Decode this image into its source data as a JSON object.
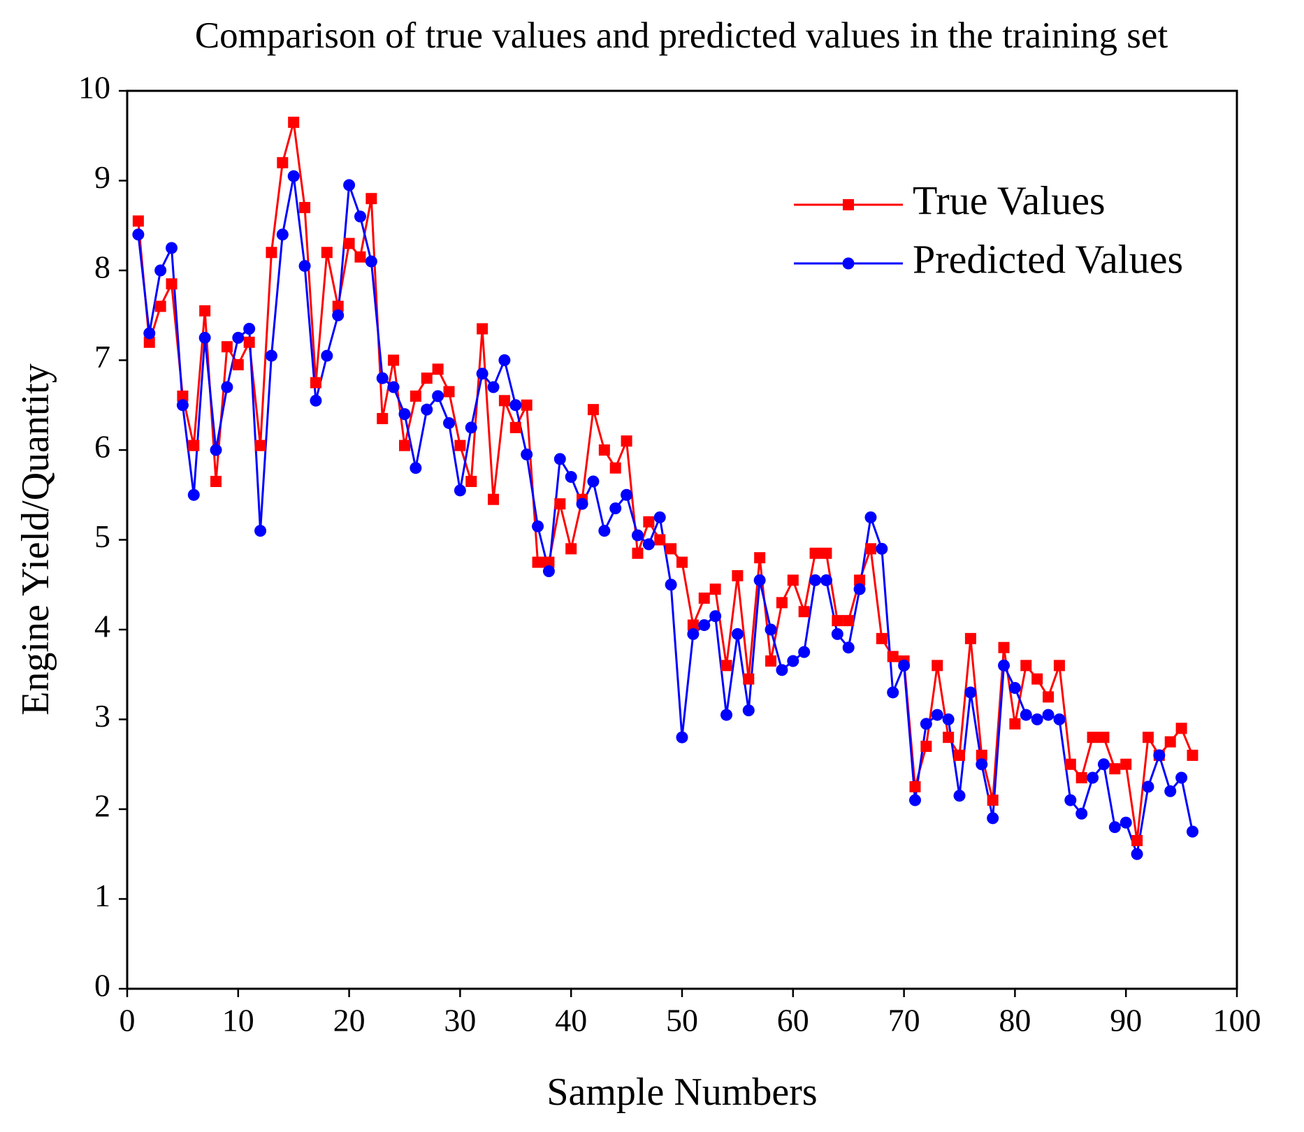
{
  "chart_data": {
    "type": "line",
    "title": "Comparison of true values and predicted values in the training set",
    "xlabel": "Sample Numbers",
    "ylabel": "Engine Yield/Quantity",
    "x": [
      1,
      2,
      3,
      4,
      5,
      6,
      7,
      8,
      9,
      10,
      11,
      12,
      13,
      14,
      15,
      16,
      17,
      18,
      19,
      20,
      21,
      22,
      23,
      24,
      25,
      26,
      27,
      28,
      29,
      30,
      31,
      32,
      33,
      34,
      35,
      36,
      37,
      38,
      39,
      40,
      41,
      42,
      43,
      44,
      45,
      46,
      47,
      48,
      49,
      50,
      51,
      52,
      53,
      54,
      55,
      56,
      57,
      58,
      59,
      60,
      61,
      62,
      63,
      64,
      65,
      66,
      67,
      68,
      69,
      70,
      71,
      72,
      73,
      74,
      75,
      76,
      77,
      78,
      79,
      80,
      81,
      82,
      83,
      84,
      85,
      86,
      87,
      88,
      89,
      90,
      91,
      92,
      93,
      94,
      95,
      96
    ],
    "series": [
      {
        "name": "True Values",
        "color": "#ff0000",
        "marker": "square",
        "values": [
          8.55,
          7.2,
          7.6,
          7.85,
          6.6,
          6.05,
          7.55,
          5.65,
          7.15,
          6.95,
          7.2,
          6.05,
          8.2,
          9.2,
          9.65,
          8.7,
          6.75,
          8.2,
          7.6,
          8.3,
          8.15,
          8.8,
          6.35,
          7.0,
          6.05,
          6.6,
          6.8,
          6.9,
          6.65,
          6.05,
          5.65,
          7.35,
          5.45,
          6.55,
          6.25,
          6.5,
          4.75,
          4.75,
          5.4,
          4.9,
          5.45,
          6.45,
          6.0,
          5.8,
          6.1,
          4.85,
          5.2,
          5.0,
          4.9,
          4.75,
          4.05,
          4.35,
          4.45,
          3.6,
          4.6,
          3.45,
          4.8,
          3.65,
          4.3,
          4.55,
          4.2,
          4.85,
          4.85,
          4.1,
          4.1,
          4.55,
          4.9,
          3.9,
          3.7,
          3.65,
          2.25,
          2.7,
          3.6,
          2.8,
          2.6,
          3.9,
          2.6,
          2.1,
          3.8,
          2.95,
          3.6,
          3.45,
          3.25,
          3.6,
          2.5,
          2.35,
          2.8,
          2.8,
          2.45,
          2.5,
          1.65,
          2.8,
          2.6,
          2.75,
          2.9,
          2.6
        ]
      },
      {
        "name": "Predicted Values",
        "color": "#0000ff",
        "marker": "circle",
        "values": [
          8.4,
          7.3,
          8.0,
          8.25,
          6.5,
          5.5,
          7.25,
          6.0,
          6.7,
          7.25,
          7.35,
          5.1,
          7.05,
          8.4,
          9.05,
          8.05,
          6.55,
          7.05,
          7.5,
          8.95,
          8.6,
          8.1,
          6.8,
          6.7,
          6.4,
          5.8,
          6.45,
          6.6,
          6.3,
          5.55,
          6.25,
          6.85,
          6.7,
          7.0,
          6.5,
          5.95,
          5.15,
          4.65,
          5.9,
          5.7,
          5.4,
          5.65,
          5.1,
          5.35,
          5.5,
          5.05,
          4.95,
          5.25,
          4.5,
          2.8,
          3.95,
          4.05,
          4.15,
          3.05,
          3.95,
          3.1,
          4.55,
          4.0,
          3.55,
          3.65,
          3.75,
          4.55,
          4.55,
          3.95,
          3.8,
          4.45,
          5.25,
          4.9,
          3.3,
          3.6,
          2.1,
          2.95,
          3.05,
          3.0,
          2.15,
          3.3,
          2.5,
          1.9,
          3.6,
          3.35,
          3.05,
          3.0,
          3.05,
          3.0,
          2.1,
          1.95,
          2.35,
          2.5,
          1.8,
          1.85,
          1.5,
          2.25,
          2.6,
          2.2,
          2.35,
          1.75
        ]
      }
    ],
    "xlim": [
      0,
      100
    ],
    "xticks": [
      0,
      10,
      20,
      30,
      40,
      50,
      60,
      70,
      80,
      90,
      100
    ],
    "ylim": [
      0,
      10
    ],
    "yticks": [
      0,
      1,
      2,
      3,
      4,
      5,
      6,
      7,
      8,
      9,
      10
    ],
    "grid": false,
    "legend": "upper right"
  }
}
